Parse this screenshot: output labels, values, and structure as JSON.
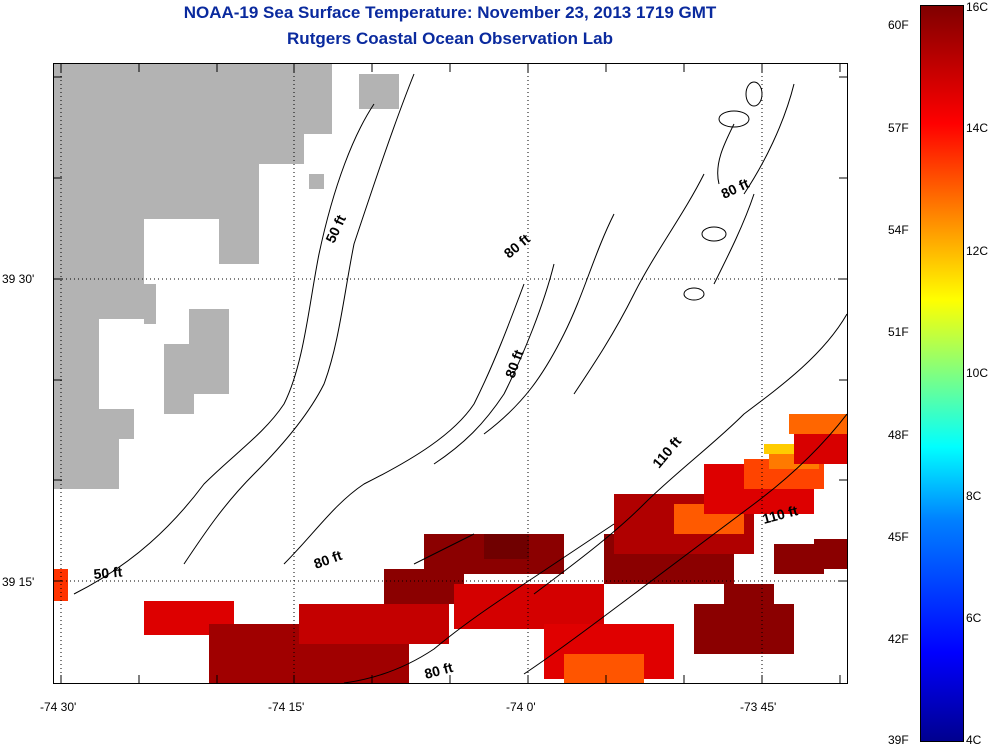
{
  "title": {
    "line1": "NOAA-19 Sea Surface Temperature:  November 23, 2013 1719 GMT",
    "line2": "Rutgers Coastal Ocean Observation Lab"
  },
  "map": {
    "lat_labels": [
      "39 30'",
      "39 15'"
    ],
    "lon_labels": [
      "-74 30'",
      "-74 15'",
      "-74 0'",
      "-73 45'"
    ],
    "depth_labels": [
      "50 ft",
      "80 ft",
      "80 ft",
      "80 ft",
      "110 ft",
      "110 ft",
      "50 ft",
      "80 ft",
      "80 ft"
    ],
    "land_color": "#b3b3b3",
    "grid": "dotted"
  },
  "colorbar": {
    "fahrenheit_labels": [
      "60F",
      "57F",
      "54F",
      "51F",
      "48F",
      "45F",
      "42F",
      "39F"
    ],
    "celsius_labels": [
      "16C",
      "14C",
      "12C",
      "10C",
      "8C",
      "6C",
      "4C"
    ],
    "range_c": [
      4,
      16
    ]
  }
}
